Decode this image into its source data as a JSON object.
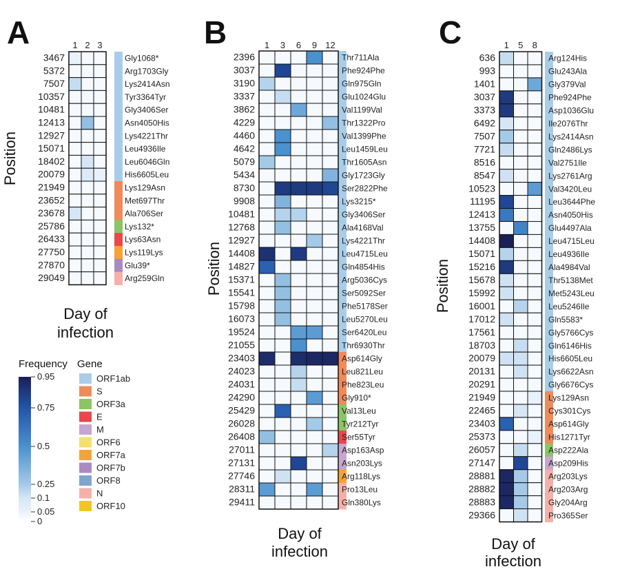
{
  "chart_data": [
    {
      "type": "heatmap",
      "panel": "A",
      "ylabel": "Position",
      "xlabel_lines": [
        "Day of",
        "infection"
      ],
      "days": [
        "1",
        "2",
        "3"
      ],
      "rows": [
        {
          "pos": "3467",
          "mut": "Gly1068*",
          "gene": "ORF1ab",
          "v": [
            0.05,
            0.02,
            0.02
          ]
        },
        {
          "pos": "5372",
          "mut": "Arg1703Gly",
          "gene": "ORF1ab",
          "v": [
            0.02,
            0.02,
            0.02
          ]
        },
        {
          "pos": "7507",
          "mut": "Lys2414Asn",
          "gene": "ORF1ab",
          "v": [
            0.15,
            0.02,
            0.02
          ]
        },
        {
          "pos": "10357",
          "mut": "Tyr3364Tyr",
          "gene": "ORF1ab",
          "v": [
            0.02,
            0.02,
            0.02
          ]
        },
        {
          "pos": "10481",
          "mut": "Gly3406Ser",
          "gene": "ORF1ab",
          "v": [
            0.02,
            0.02,
            0.02
          ]
        },
        {
          "pos": "12413",
          "mut": "Asn4050His",
          "gene": "ORF1ab",
          "v": [
            0.02,
            0.3,
            0.02
          ]
        },
        {
          "pos": "12927",
          "mut": "Lys4221Thr",
          "gene": "ORF1ab",
          "v": [
            0.02,
            0.02,
            0.02
          ]
        },
        {
          "pos": "15071",
          "mut": "Leu4936Ile",
          "gene": "ORF1ab",
          "v": [
            0.02,
            0.02,
            0.02
          ]
        },
        {
          "pos": "18402",
          "mut": "Leu6046Gln",
          "gene": "ORF1ab",
          "v": [
            0.02,
            0.1,
            0.02
          ]
        },
        {
          "pos": "20079",
          "mut": "His6605Leu",
          "gene": "ORF1ab",
          "v": [
            0.02,
            0.08,
            0.05
          ]
        },
        {
          "pos": "21949",
          "mut": "Lys129Asn",
          "gene": "S",
          "v": [
            0.02,
            0.02,
            0.02
          ]
        },
        {
          "pos": "23652",
          "mut": "Met697Thr",
          "gene": "S",
          "v": [
            0.02,
            0.02,
            0.02
          ]
        },
        {
          "pos": "23678",
          "mut": "Ala706Ser",
          "gene": "S",
          "v": [
            0.1,
            0.02,
            0.02
          ]
        },
        {
          "pos": "25786",
          "mut": "Lys132*",
          "gene": "ORF3a",
          "v": [
            0.02,
            0.02,
            0.02
          ]
        },
        {
          "pos": "26433",
          "mut": "Lys63Asn",
          "gene": "E",
          "v": [
            0.02,
            0.02,
            0.02
          ]
        },
        {
          "pos": "27750",
          "mut": "Lys119Lys",
          "gene": "ORF7a",
          "v": [
            0.02,
            0.02,
            0.02
          ]
        },
        {
          "pos": "27870",
          "mut": "Glu39*",
          "gene": "ORF7b",
          "v": [
            0.02,
            0.02,
            0.02
          ]
        },
        {
          "pos": "29049",
          "mut": "Arg259Gln",
          "gene": "N",
          "v": [
            0.02,
            0.02,
            0.02
          ]
        }
      ]
    },
    {
      "type": "heatmap",
      "panel": "B",
      "ylabel": "Position",
      "xlabel_lines": [
        "Day of",
        "infection"
      ],
      "days": [
        "1",
        "3",
        "6",
        "9",
        "12"
      ],
      "rows": [
        {
          "pos": "2396",
          "mut": "Thr711Ala",
          "gene": "ORF1ab",
          "v": [
            0.02,
            0.02,
            0.02,
            0.5,
            0.02
          ]
        },
        {
          "pos": "3037",
          "mut": "Phe924Phe",
          "gene": "ORF1ab",
          "v": [
            0.02,
            0.8,
            0.02,
            0.02,
            0.02
          ]
        },
        {
          "pos": "3190",
          "mut": "Gln975Gln",
          "gene": "ORF1ab",
          "v": [
            0.2,
            0.02,
            0.02,
            0.02,
            0.02
          ]
        },
        {
          "pos": "3337",
          "mut": "Glu1024Glu",
          "gene": "ORF1ab",
          "v": [
            0.02,
            0.15,
            0.02,
            0.02,
            0.02
          ]
        },
        {
          "pos": "3862",
          "mut": "Val1199Val",
          "gene": "ORF1ab",
          "v": [
            0.02,
            0.02,
            0.4,
            0.02,
            0.02
          ]
        },
        {
          "pos": "4229",
          "mut": "Thr1322Pro",
          "gene": "ORF1ab",
          "v": [
            0.02,
            0.02,
            0.02,
            0.02,
            0.3
          ]
        },
        {
          "pos": "4460",
          "mut": "Val1399Phe",
          "gene": "ORF1ab",
          "v": [
            0.02,
            0.5,
            0.02,
            0.02,
            0.02
          ]
        },
        {
          "pos": "4642",
          "mut": "Leu1459Leu",
          "gene": "ORF1ab",
          "v": [
            0.02,
            0.5,
            0.02,
            0.02,
            0.02
          ]
        },
        {
          "pos": "5079",
          "mut": "Thr1605Asn",
          "gene": "ORF1ab",
          "v": [
            0.25,
            0.02,
            0.02,
            0.02,
            0.02
          ]
        },
        {
          "pos": "5434",
          "mut": "Gly1723Gly",
          "gene": "ORF1ab",
          "v": [
            0.02,
            0.02,
            0.02,
            0.02,
            0.35
          ]
        },
        {
          "pos": "8730",
          "mut": "Ser2822Phe",
          "gene": "ORF1ab",
          "v": [
            0.02,
            0.85,
            0.85,
            0.85,
            0.8
          ]
        },
        {
          "pos": "9908",
          "mut": "Lys3215*",
          "gene": "ORF1ab",
          "v": [
            0.02,
            0.35,
            0.02,
            0.02,
            0.02
          ]
        },
        {
          "pos": "10481",
          "mut": "Gly3406Ser",
          "gene": "ORF1ab",
          "v": [
            0.02,
            0.2,
            0.2,
            0.02,
            0.02
          ]
        },
        {
          "pos": "12768",
          "mut": "Ala4168Val",
          "gene": "ORF1ab",
          "v": [
            0.02,
            0.3,
            0.02,
            0.02,
            0.02
          ]
        },
        {
          "pos": "12927",
          "mut": "Lys4221Thr",
          "gene": "ORF1ab",
          "v": [
            0.02,
            0.02,
            0.02,
            0.25,
            0.02
          ]
        },
        {
          "pos": "14408",
          "mut": "Leu4715Leu",
          "gene": "ORF1ab",
          "v": [
            0.88,
            0.02,
            0.85,
            0.02,
            0.02
          ]
        },
        {
          "pos": "14827",
          "mut": "Gln4854His",
          "gene": "ORF1ab",
          "v": [
            0.7,
            0.02,
            0.02,
            0.02,
            0.02
          ]
        },
        {
          "pos": "15371",
          "mut": "Arg5036Cys",
          "gene": "ORF1ab",
          "v": [
            0.02,
            0.3,
            0.02,
            0.02,
            0.02
          ]
        },
        {
          "pos": "15541",
          "mut": "Ser5092Ser",
          "gene": "ORF1ab",
          "v": [
            0.02,
            0.3,
            0.02,
            0.02,
            0.02
          ]
        },
        {
          "pos": "15798",
          "mut": "Phe5178Ser",
          "gene": "ORF1ab",
          "v": [
            0.02,
            0.3,
            0.02,
            0.02,
            0.02
          ]
        },
        {
          "pos": "16073",
          "mut": "Leu5270Leu",
          "gene": "ORF1ab",
          "v": [
            0.02,
            0.3,
            0.02,
            0.02,
            0.02
          ]
        },
        {
          "pos": "19524",
          "mut": "Ser6420Leu",
          "gene": "ORF1ab",
          "v": [
            0.02,
            0.02,
            0.45,
            0.45,
            0.02
          ]
        },
        {
          "pos": "21055",
          "mut": "Thr6930Thr",
          "gene": "ORF1ab",
          "v": [
            0.02,
            0.02,
            0.5,
            0.02,
            0.02
          ]
        },
        {
          "pos": "23403",
          "mut": "Asp614Gly",
          "gene": "S",
          "v": [
            0.9,
            0.02,
            0.9,
            0.92,
            0.92
          ]
        },
        {
          "pos": "24023",
          "mut": "Leu821Leu",
          "gene": "S",
          "v": [
            0.02,
            0.02,
            0.2,
            0.02,
            0.02
          ]
        },
        {
          "pos": "24031",
          "mut": "Phe823Leu",
          "gene": "S",
          "v": [
            0.02,
            0.02,
            0.15,
            0.02,
            0.02
          ]
        },
        {
          "pos": "24290",
          "mut": "Gly910*",
          "gene": "S",
          "v": [
            0.02,
            0.02,
            0.02,
            0.45,
            0.02
          ]
        },
        {
          "pos": "25429",
          "mut": "Val13Leu",
          "gene": "ORF3a",
          "v": [
            0.02,
            0.7,
            0.02,
            0.02,
            0.02
          ]
        },
        {
          "pos": "26028",
          "mut": "Tyr212Tyr",
          "gene": "ORF3a",
          "v": [
            0.02,
            0.02,
            0.02,
            0.25,
            0.02
          ]
        },
        {
          "pos": "26408",
          "mut": "Ser55Tyr",
          "gene": "E",
          "v": [
            0.3,
            0.02,
            0.02,
            0.02,
            0.02
          ]
        },
        {
          "pos": "27011",
          "mut": "Asp163Asp",
          "gene": "M",
          "v": [
            0.02,
            0.02,
            0.02,
            0.02,
            0.2
          ]
        },
        {
          "pos": "27131",
          "mut": "Asn203Lys",
          "gene": "M",
          "v": [
            0.02,
            0.02,
            0.8,
            0.02,
            0.02
          ]
        },
        {
          "pos": "27746",
          "mut": "Arg118Lys",
          "gene": "ORF7a",
          "v": [
            0.02,
            0.12,
            0.02,
            0.02,
            0.02
          ]
        },
        {
          "pos": "28311",
          "mut": "Pro13Leu",
          "gene": "N",
          "v": [
            0.45,
            0.02,
            0.02,
            0.45,
            0.02
          ]
        },
        {
          "pos": "29411",
          "mut": "Gln380Lys",
          "gene": "N",
          "v": [
            0.02,
            0.02,
            0.02,
            0.02,
            0.02
          ]
        }
      ]
    },
    {
      "type": "heatmap",
      "panel": "C",
      "ylabel": "Position",
      "xlabel_lines": [
        "Day of",
        "infection"
      ],
      "days": [
        "1",
        "5",
        "8"
      ],
      "rows": [
        {
          "pos": "636",
          "mut": "Arg124His",
          "gene": "ORF1ab",
          "v": [
            0.15,
            0.02,
            0.02
          ]
        },
        {
          "pos": "993",
          "mut": "Glu243Ala",
          "gene": "ORF1ab",
          "v": [
            0.02,
            0.02,
            0.02
          ]
        },
        {
          "pos": "1401",
          "mut": "Gly379Val",
          "gene": "ORF1ab",
          "v": [
            0.02,
            0.02,
            0.4
          ]
        },
        {
          "pos": "3037",
          "mut": "Phe924Phe",
          "gene": "ORF1ab",
          "v": [
            0.85,
            0.02,
            0.02
          ]
        },
        {
          "pos": "3373",
          "mut": "Asp1036Glu",
          "gene": "ORF1ab",
          "v": [
            0.85,
            0.02,
            0.02
          ]
        },
        {
          "pos": "6492",
          "mut": "Ile2076Thr",
          "gene": "ORF1ab",
          "v": [
            0.1,
            0.02,
            0.02
          ]
        },
        {
          "pos": "7507",
          "mut": "Lys2414Asn",
          "gene": "ORF1ab",
          "v": [
            0.25,
            0.02,
            0.02
          ]
        },
        {
          "pos": "7721",
          "mut": "Gln2486Lys",
          "gene": "ORF1ab",
          "v": [
            0.15,
            0.02,
            0.02
          ]
        },
        {
          "pos": "8516",
          "mut": "Val2751Ile",
          "gene": "ORF1ab",
          "v": [
            0.02,
            0.02,
            0.02
          ]
        },
        {
          "pos": "8547",
          "mut": "Lys2761Arg",
          "gene": "ORF1ab",
          "v": [
            0.12,
            0.02,
            0.02
          ]
        },
        {
          "pos": "10523",
          "mut": "Val3420Leu",
          "gene": "ORF1ab",
          "v": [
            0.02,
            0.02,
            0.45
          ]
        },
        {
          "pos": "11195",
          "mut": "Leu3644Phe",
          "gene": "ORF1ab",
          "v": [
            0.8,
            0.02,
            0.02
          ]
        },
        {
          "pos": "12413",
          "mut": "Asn4050His",
          "gene": "ORF1ab",
          "v": [
            0.6,
            0.02,
            0.02
          ]
        },
        {
          "pos": "13755",
          "mut": "Glu4497Ala",
          "gene": "ORF1ab",
          "v": [
            0.02,
            0.55,
            0.02
          ]
        },
        {
          "pos": "14408",
          "mut": "Leu4715Leu",
          "gene": "ORF1ab",
          "v": [
            0.95,
            0.02,
            0.02
          ]
        },
        {
          "pos": "15071",
          "mut": "Leu4936Ile",
          "gene": "ORF1ab",
          "v": [
            0.2,
            0.02,
            0.02
          ]
        },
        {
          "pos": "15216",
          "mut": "Ala4984Val",
          "gene": "ORF1ab",
          "v": [
            0.85,
            0.02,
            0.02
          ]
        },
        {
          "pos": "15678",
          "mut": "Thr5138Met",
          "gene": "ORF1ab",
          "v": [
            0.12,
            0.02,
            0.02
          ]
        },
        {
          "pos": "15992",
          "mut": "Met5243Leu",
          "gene": "ORF1ab",
          "v": [
            0.12,
            0.02,
            0.02
          ]
        },
        {
          "pos": "16001",
          "mut": "Leu5246Ile",
          "gene": "ORF1ab",
          "v": [
            0.02,
            0.2,
            0.02
          ]
        },
        {
          "pos": "17012",
          "mut": "Gln5583*",
          "gene": "ORF1ab",
          "v": [
            0.12,
            0.02,
            0.02
          ]
        },
        {
          "pos": "17561",
          "mut": "Gly5766Cys",
          "gene": "ORF1ab",
          "v": [
            0.02,
            0.02,
            0.02
          ]
        },
        {
          "pos": "18703",
          "mut": "Gln6146His",
          "gene": "ORF1ab",
          "v": [
            0.02,
            0.15,
            0.02
          ]
        },
        {
          "pos": "20079",
          "mut": "His6605Leu",
          "gene": "ORF1ab",
          "v": [
            0.12,
            0.12,
            0.02
          ]
        },
        {
          "pos": "20131",
          "mut": "Lys6622Asn",
          "gene": "ORF1ab",
          "v": [
            0.02,
            0.12,
            0.02
          ]
        },
        {
          "pos": "20291",
          "mut": "Gly6676Cys",
          "gene": "ORF1ab",
          "v": [
            0.02,
            0.02,
            0.02
          ]
        },
        {
          "pos": "21949",
          "mut": "Lys129Asn",
          "gene": "S",
          "v": [
            0.02,
            0.02,
            0.05
          ]
        },
        {
          "pos": "22465",
          "mut": "Cys301Cys",
          "gene": "S",
          "v": [
            0.02,
            0.1,
            0.02
          ]
        },
        {
          "pos": "23403",
          "mut": "Asp614Gly",
          "gene": "S",
          "v": [
            0.7,
            0.02,
            0.02
          ]
        },
        {
          "pos": "25373",
          "mut": "His1271Tyr",
          "gene": "S",
          "v": [
            0.02,
            0.02,
            0.05
          ]
        },
        {
          "pos": "26057",
          "mut": "Asp222Ala",
          "gene": "ORF3a",
          "v": [
            0.02,
            0.15,
            0.02
          ]
        },
        {
          "pos": "27147",
          "mut": "Asp209His",
          "gene": "M",
          "v": [
            0.02,
            0.8,
            0.02
          ]
        },
        {
          "pos": "28881",
          "mut": "Arg203Lys",
          "gene": "N",
          "v": [
            0.92,
            0.25,
            0.02
          ]
        },
        {
          "pos": "28882",
          "mut": "Arg203Arg",
          "gene": "N",
          "v": [
            0.92,
            0.25,
            0.02
          ]
        },
        {
          "pos": "28883",
          "mut": "Gly204Arg",
          "gene": "N",
          "v": [
            0.92,
            0.25,
            0.02
          ]
        },
        {
          "pos": "29366",
          "mut": "Pro365Ser",
          "gene": "N",
          "v": [
            0.02,
            0.12,
            0.02
          ]
        }
      ]
    }
  ],
  "legend": {
    "frequency_title": "Frequency",
    "gene_title": "Gene",
    "scale_ticks": [
      {
        "v": 0.95,
        "label": "0.95"
      },
      {
        "v": 0.75,
        "label": "0.75"
      },
      {
        "v": 0.5,
        "label": "0.5"
      },
      {
        "v": 0.25,
        "label": "0.25"
      },
      {
        "v": 0.1,
        "label": "0.1"
      },
      {
        "v": 0.05,
        "label": "0.05"
      },
      {
        "v": 0,
        "label": "0"
      }
    ],
    "genes": [
      {
        "name": "ORF1ab",
        "color": "#a9cde9"
      },
      {
        "name": "S",
        "color": "#f08a5b"
      },
      {
        "name": "ORF3a",
        "color": "#8cc466"
      },
      {
        "name": "E",
        "color": "#e8474c"
      },
      {
        "name": "M",
        "color": "#c6a6cf"
      },
      {
        "name": "ORF6",
        "color": "#f3e070"
      },
      {
        "name": "ORF7a",
        "color": "#f6a334"
      },
      {
        "name": "ORF7b",
        "color": "#a98bc2"
      },
      {
        "name": "ORF8",
        "color": "#7fa6cf"
      },
      {
        "name": "N",
        "color": "#f5b1a9"
      },
      {
        "name": "ORF10",
        "color": "#f2c51f"
      }
    ]
  }
}
